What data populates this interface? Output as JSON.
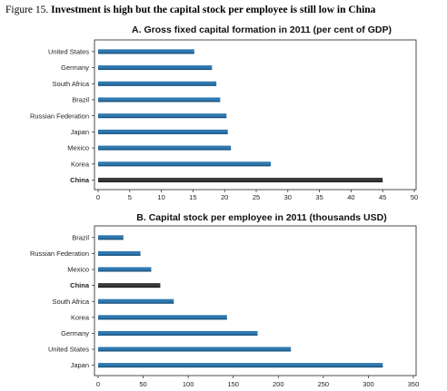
{
  "figure": {
    "number": "Figure 15.",
    "title": "Investment is high but the capital stock per employee is still low in China"
  },
  "colors": {
    "bar": "#2f78b0",
    "bar_dark": "#1d5580",
    "highlight": "#3a3a3a",
    "axis": "#222222"
  },
  "chart_data": [
    {
      "type": "bar",
      "orientation": "horizontal",
      "title": "A. Gross fixed capital formation in 2011 (per cent of GDP)",
      "categories": [
        "United States",
        "Germany",
        "South Africa",
        "Brazil",
        "Russian Federation",
        "Japan",
        "Mexico",
        "Korea",
        "China"
      ],
      "values": [
        15.2,
        18.0,
        18.7,
        19.3,
        20.3,
        20.5,
        21.0,
        27.3,
        45.0
      ],
      "highlight": "China",
      "xlim": [
        0,
        50
      ],
      "xticks": [
        0,
        5,
        10,
        15,
        20,
        25,
        30,
        35,
        40,
        45,
        50
      ],
      "grid": false
    },
    {
      "type": "bar",
      "orientation": "horizontal",
      "title": "B. Capital stock per employee in 2011 (thousands USD)",
      "categories": [
        "Brazil",
        "Russian Federation",
        "Mexico",
        "China",
        "South Africa",
        "Korea",
        "Germany",
        "United States",
        "Japan"
      ],
      "values": [
        28,
        47,
        59,
        69,
        84,
        143,
        177,
        214,
        316
      ],
      "highlight": "China",
      "xlim": [
        0,
        350
      ],
      "xticks": [
        0,
        50,
        100,
        150,
        200,
        250,
        300,
        350
      ],
      "grid": false
    }
  ]
}
